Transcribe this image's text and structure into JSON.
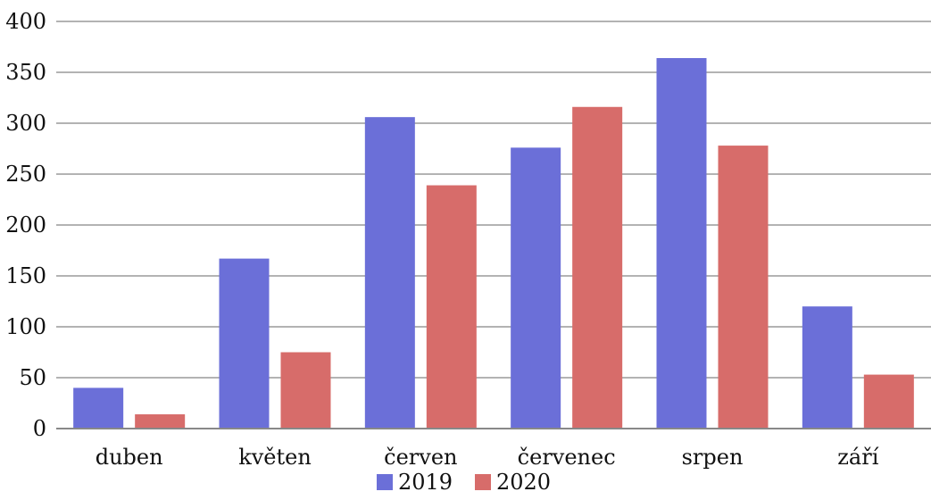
{
  "chart_data": {
    "type": "bar",
    "title": "",
    "xlabel": "",
    "ylabel": "",
    "categories": [
      "duben",
      "květen",
      "červen",
      "červenec",
      "srpen",
      "září"
    ],
    "series": [
      {
        "name": "2019",
        "values": [
          40,
          167,
          306,
          276,
          364,
          120
        ]
      },
      {
        "name": "2020",
        "values": [
          14,
          75,
          239,
          316,
          278,
          53
        ]
      }
    ],
    "ylim": [
      0,
      400
    ],
    "yticks": [
      0,
      50,
      100,
      150,
      200,
      250,
      300,
      350,
      400
    ],
    "grid": true,
    "legend_position": "bottom-center",
    "colors": {
      "2019": "#6b6fd8",
      "2020": "#d76c6a"
    }
  }
}
